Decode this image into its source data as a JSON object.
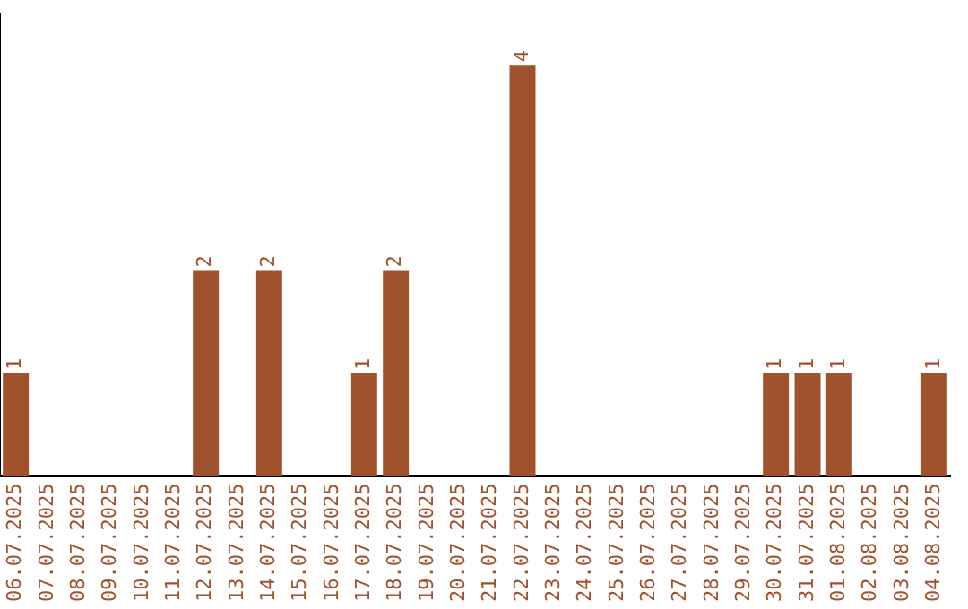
{
  "chart_data": {
    "type": "bar",
    "categories": [
      "06.07.2025",
      "07.07.2025",
      "08.07.2025",
      "09.07.2025",
      "10.07.2025",
      "11.07.2025",
      "12.07.2025",
      "13.07.2025",
      "14.07.2025",
      "15.07.2025",
      "16.07.2025",
      "17.07.2025",
      "18.07.2025",
      "19.07.2025",
      "20.07.2025",
      "21.07.2025",
      "22.07.2025",
      "23.07.2025",
      "24.07.2025",
      "25.07.2025",
      "26.07.2025",
      "27.07.2025",
      "28.07.2025",
      "29.07.2025",
      "30.07.2025",
      "31.07.2025",
      "01.08.2025",
      "02.08.2025",
      "03.08.2025",
      "04.08.2025"
    ],
    "values": [
      1,
      0,
      0,
      0,
      0,
      0,
      2,
      0,
      2,
      0,
      0,
      1,
      2,
      0,
      0,
      0,
      4,
      0,
      0,
      0,
      0,
      0,
      0,
      0,
      1,
      1,
      1,
      0,
      0,
      1
    ],
    "value_labels": [
      "1",
      null,
      null,
      null,
      null,
      null,
      "2",
      null,
      "2",
      null,
      null,
      "1",
      "2",
      null,
      null,
      null,
      "4",
      null,
      null,
      null,
      null,
      null,
      null,
      null,
      "1",
      "1",
      "1",
      null,
      null,
      "1"
    ],
    "color": "#a0522d",
    "grid": false,
    "tick_labels": "x"
  }
}
